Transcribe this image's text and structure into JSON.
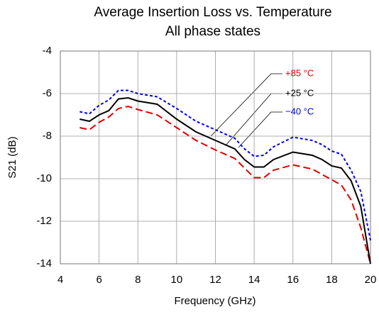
{
  "chart_data": {
    "type": "line",
    "title": "Average Insertion Loss vs. Temperature",
    "subtitle": "All phase states",
    "x_label": "Frequency (GHz)",
    "y_label": "S21 (dB)",
    "x": [
      5,
      5.5,
      6,
      6.5,
      7,
      7.5,
      8,
      9,
      10,
      11,
      12,
      13,
      13.5,
      14,
      14.5,
      15,
      16,
      17,
      17.5,
      18,
      18.5,
      19,
      19.5,
      20
    ],
    "series": [
      {
        "name": "+85 °C",
        "color": "#e00000",
        "dash": "10,5",
        "values": [
          -7.6,
          -7.7,
          -7.35,
          -7.1,
          -6.7,
          -6.6,
          -6.75,
          -7.0,
          -7.6,
          -8.2,
          -8.65,
          -9.05,
          -9.5,
          -9.95,
          -9.95,
          -9.6,
          -9.35,
          -9.55,
          -9.8,
          -10.05,
          -10.3,
          -11,
          -12.3,
          -14
        ]
      },
      {
        "name": "+25 °C",
        "color": "#000000",
        "dash": "none",
        "values": [
          -7.2,
          -7.3,
          -7.0,
          -6.8,
          -6.25,
          -6.2,
          -6.35,
          -6.5,
          -7.2,
          -7.8,
          -8.2,
          -8.6,
          -9.1,
          -9.45,
          -9.45,
          -9.1,
          -8.75,
          -8.9,
          -9.1,
          -9.4,
          -9.5,
          -10.1,
          -11.3,
          -14
        ]
      },
      {
        "name": "−40 °C",
        "color": "#0000e0",
        "dash": "4,3",
        "values": [
          -6.85,
          -6.95,
          -6.55,
          -6.3,
          -5.85,
          -5.85,
          -6.0,
          -6.15,
          -6.7,
          -7.3,
          -7.7,
          -8.1,
          -8.6,
          -8.95,
          -8.9,
          -8.5,
          -8.05,
          -8.2,
          -8.4,
          -8.7,
          -8.85,
          -9.6,
          -10.6,
          -12.9
        ]
      }
    ],
    "xlim": [
      4,
      20
    ],
    "xticks": [
      4,
      6,
      8,
      10,
      12,
      14,
      16,
      18,
      20
    ],
    "ylim": [
      -14,
      -4
    ],
    "yticks": [
      -4,
      -6,
      -8,
      -10,
      -12,
      -14
    ],
    "grid": true
  }
}
